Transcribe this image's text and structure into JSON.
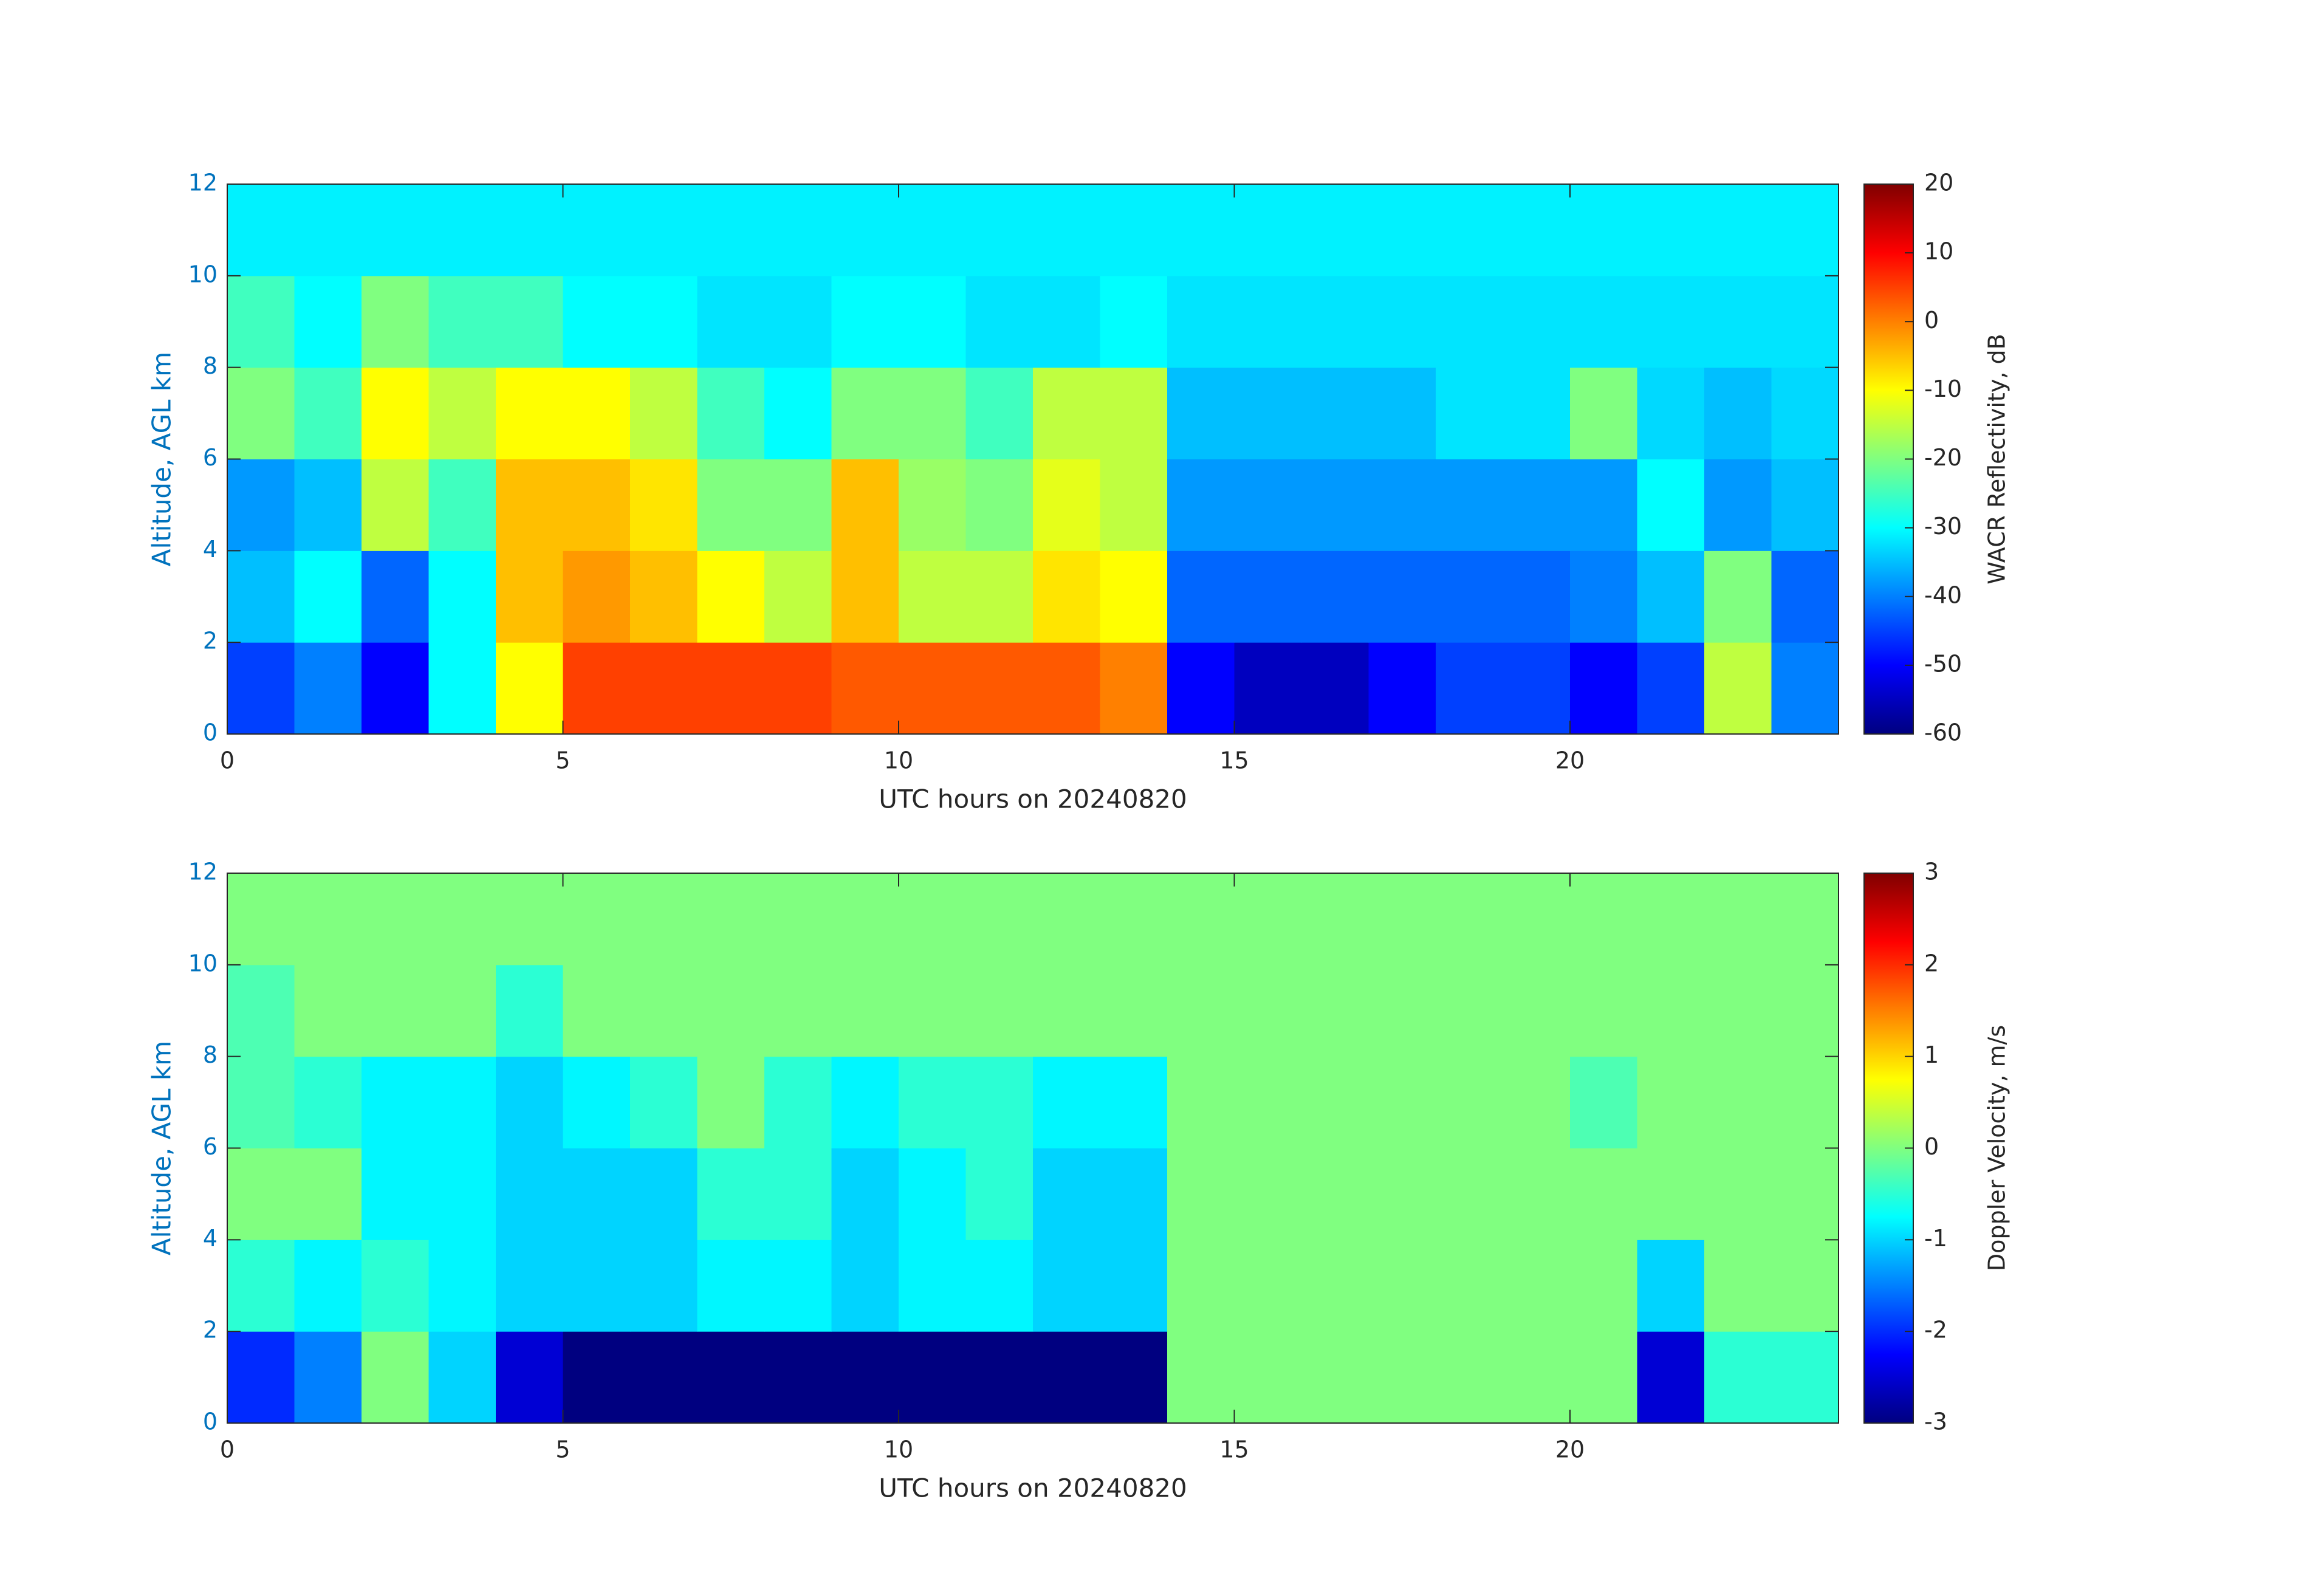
{
  "chart_data": [
    {
      "type": "heatmap",
      "xlabel": "UTC hours on 20240820",
      "ylabel": "Altitude, AGL km",
      "colorbar_label": "WACR Reflectivity, dB",
      "colormap": "jet",
      "xlim": [
        0,
        24
      ],
      "ylim": [
        0,
        12
      ],
      "xticks": [
        0,
        5,
        10,
        15,
        20
      ],
      "yticks": [
        0,
        2,
        4,
        6,
        8,
        10,
        12
      ],
      "clim": [
        -60,
        20
      ],
      "cticks": [
        -60,
        -50,
        -40,
        -30,
        -20,
        -10,
        0,
        10,
        20
      ],
      "xbins": [
        0,
        1,
        2,
        3,
        4,
        5,
        6,
        7,
        8,
        9,
        10,
        11,
        12,
        13,
        14,
        15,
        16,
        17,
        18,
        19,
        20,
        21,
        22,
        23,
        24
      ],
      "ybins": [
        0,
        2,
        4,
        6,
        8,
        10,
        12
      ],
      "z": [
        [
          -45,
          -40,
          -50,
          -30,
          -10,
          5,
          5,
          5,
          5,
          3,
          3,
          3,
          3,
          0,
          -50,
          -55,
          -55,
          -50,
          -45,
          -45,
          -50,
          -45,
          -15,
          -40
        ],
        [
          -35,
          -30,
          -42,
          -30,
          -5,
          -2,
          -5,
          -10,
          -15,
          -5,
          -15,
          -15,
          -8,
          -10,
          -42,
          -42,
          -42,
          -42,
          -42,
          -42,
          -40,
          -35,
          -20,
          -42
        ],
        [
          -38,
          -35,
          -15,
          -25,
          -5,
          -5,
          -8,
          -20,
          -20,
          -5,
          -18,
          -20,
          -12,
          -15,
          -38,
          -38,
          -38,
          -38,
          -38,
          -38,
          -38,
          -30,
          -38,
          -35
        ],
        [
          -20,
          -25,
          -10,
          -15,
          -10,
          -10,
          -15,
          -25,
          -30,
          -20,
          -20,
          -25,
          -15,
          -15,
          -35,
          -35,
          -35,
          -35,
          -32,
          -32,
          -20,
          -33,
          -35,
          -33
        ],
        [
          -25,
          -30,
          -20,
          -25,
          -25,
          -30,
          -30,
          -32,
          -32,
          -30,
          -30,
          -32,
          -32,
          -30,
          -32,
          -32,
          -32,
          -32,
          -32,
          -32,
          -32,
          -32,
          -32,
          -32
        ],
        [
          -31,
          -31,
          -31,
          -31,
          -31,
          -31,
          -31,
          -31,
          -31,
          -31,
          -31,
          -31,
          -31,
          -31,
          -31,
          -31,
          -31,
          -31,
          -31,
          -31,
          -31,
          -31,
          -31,
          -31
        ]
      ]
    },
    {
      "type": "heatmap",
      "xlabel": "UTC hours on 20240820",
      "ylabel": "Altitude, AGL km",
      "colorbar_label": "Doppler Velocity, m/s",
      "colormap": "jet",
      "xlim": [
        0,
        24
      ],
      "ylim": [
        0,
        12
      ],
      "xticks": [
        0,
        5,
        10,
        15,
        20
      ],
      "yticks": [
        0,
        2,
        4,
        6,
        8,
        10,
        12
      ],
      "clim": [
        -3,
        3
      ],
      "cticks": [
        -3,
        -2,
        -1,
        0,
        1,
        2,
        3
      ],
      "xbins": [
        0,
        1,
        2,
        3,
        4,
        5,
        6,
        7,
        8,
        9,
        10,
        11,
        12,
        13,
        14,
        15,
        16,
        17,
        18,
        19,
        20,
        21,
        22,
        23,
        24
      ],
      "ybins": [
        0,
        2,
        4,
        6,
        8,
        10,
        12
      ],
      "z": [
        [
          -2,
          -1.5,
          0,
          -1,
          -2.5,
          -3,
          -3,
          -3,
          -3,
          -3,
          -3,
          -3,
          -3,
          -3,
          0,
          0,
          0,
          0,
          0,
          0,
          0,
          -2.5,
          -0.5,
          -0.5
        ],
        [
          -0.5,
          -0.8,
          -0.5,
          -0.8,
          -1,
          -1,
          -1,
          -0.8,
          -0.8,
          -1,
          -0.8,
          -0.8,
          -1,
          -1,
          0,
          0,
          0,
          0,
          0,
          0,
          0,
          -1,
          0,
          0
        ],
        [
          0,
          0,
          -0.8,
          -0.8,
          -1,
          -1,
          -1,
          -0.5,
          -0.5,
          -1,
          -0.8,
          -0.5,
          -1,
          -1,
          0,
          0,
          0,
          0,
          0,
          0,
          0,
          0,
          0,
          0
        ],
        [
          -0.3,
          -0.5,
          -0.8,
          -0.8,
          -1,
          -0.8,
          -0.5,
          0,
          -0.5,
          -0.8,
          -0.5,
          -0.5,
          -0.8,
          -0.8,
          0,
          0,
          0,
          0,
          0,
          0,
          -0.3,
          0,
          0,
          0
        ],
        [
          -0.3,
          0,
          0,
          0,
          -0.5,
          0,
          0,
          0,
          0,
          0,
          0,
          0,
          0,
          0,
          0,
          0,
          0,
          0,
          0,
          0,
          0,
          0,
          0,
          0
        ],
        [
          0,
          0,
          0,
          0,
          0,
          0,
          0,
          0,
          0,
          0,
          0,
          0,
          0,
          0,
          0,
          0,
          0,
          0,
          0,
          0,
          0,
          0,
          0,
          0
        ]
      ]
    }
  ]
}
